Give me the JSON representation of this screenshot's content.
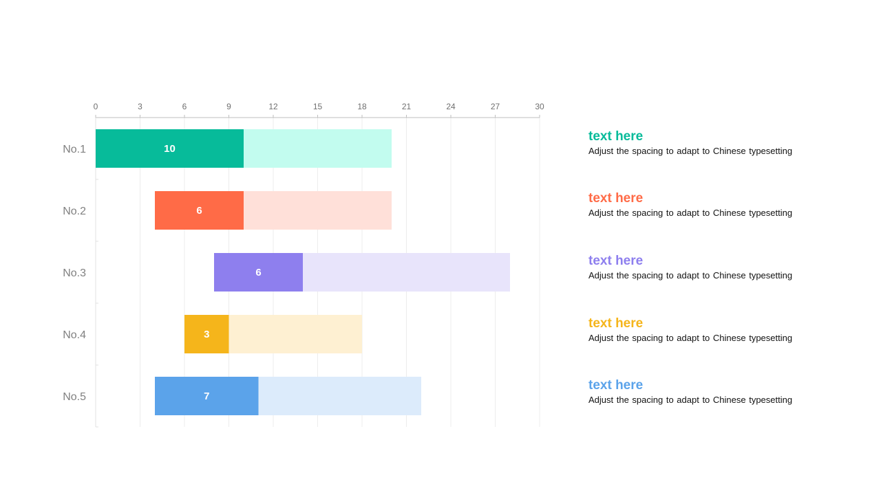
{
  "chart_data": {
    "type": "bar",
    "orientation": "horizontal",
    "stacked": true,
    "categories": [
      "No.1",
      "No.2",
      "No.3",
      "No.4",
      "No.5"
    ],
    "start": [
      0,
      4,
      8,
      6,
      4
    ],
    "series": [
      {
        "values": [
          10,
          6,
          6,
          3,
          7
        ],
        "show_labels": true
      },
      {
        "values": [
          10,
          10,
          14,
          9,
          11
        ]
      }
    ],
    "xlim": [
      0,
      30
    ],
    "xticks": [
      0,
      3,
      6,
      9,
      12,
      15,
      18,
      21,
      24,
      27,
      30
    ],
    "x_axis_position": "top",
    "grid": true,
    "colors": [
      "#07BB9A",
      "#FF6B47",
      "#8E7FEE",
      "#F5B51B",
      "#5BA3EA"
    ],
    "light_colors": [
      "#C2FCEF",
      "#FFE0D9",
      "#E8E4FB",
      "#FEF0D2",
      "#DCEBFB"
    ]
  },
  "legend": [
    {
      "title": "text here",
      "desc": "Adjust the spacing to adapt to Chinese typesetting",
      "color": "#07BB9A"
    },
    {
      "title": "text here",
      "desc": "Adjust the spacing to adapt to Chinese typesetting",
      "color": "#FF6B47"
    },
    {
      "title": "text here",
      "desc": "Adjust the spacing to adapt to Chinese typesetting",
      "color": "#8E7FEE"
    },
    {
      "title": "text here",
      "desc": "Adjust the spacing to adapt to Chinese typesetting",
      "color": "#F5B51B"
    },
    {
      "title": "text here",
      "desc": "Adjust the spacing to adapt to Chinese typesetting",
      "color": "#5BA3EA"
    }
  ]
}
